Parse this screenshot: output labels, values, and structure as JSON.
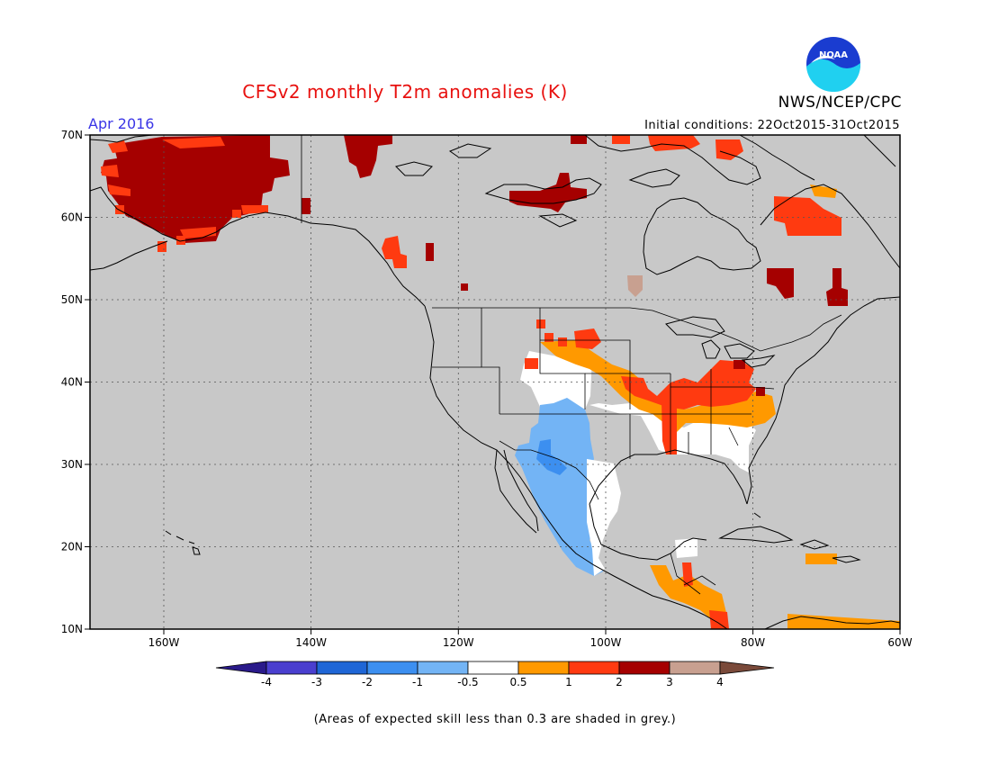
{
  "title": "CFSv2 monthly T2m anomalies (K)",
  "organization": "NWS/NCEP/CPC",
  "logo_text": "NOAA",
  "valid_month": "Apr 2016",
  "initial_conditions": "Initial conditions: 22Oct2015-31Oct2015",
  "caption": "(Areas of expected skill less than 0.3 are shaded in grey.)",
  "map": {
    "lon_range": [
      -170,
      -60
    ],
    "lat_range": [
      10,
      70
    ],
    "lon_ticks": [
      "160W",
      "140W",
      "120W",
      "100W",
      "80W",
      "60W"
    ],
    "lat_ticks": [
      "70N",
      "60N",
      "50N",
      "40N",
      "30N",
      "20N",
      "10N"
    ],
    "background_color": "#c8c8c8",
    "gridlines": "dotted",
    "anomaly_regions": [
      {
        "name": "Alaska",
        "category": "2 to 3",
        "color": "#a50000"
      },
      {
        "name": "Northern Canada",
        "category": "2 to 3",
        "color": "#a50000"
      },
      {
        "name": "Hudson Bay / Labrador",
        "category": "1 to 2",
        "color": "#ff3a10"
      },
      {
        "name": "Ohio Valley / Midwest",
        "category": "1 to 2",
        "color": "#ff3a10"
      },
      {
        "name": "Southern Plains / Southeast",
        "category": "0.5 to 1",
        "color": "#ff9900"
      },
      {
        "name": "Southwest US / Western Mexico",
        "category": "-1 to -0.5",
        "color": "#73b4f5"
      },
      {
        "name": "Gulf coast / Southeast",
        "category": "-0.5 to 0.5",
        "color": "#ffffff"
      },
      {
        "name": "Central America",
        "category": "0.5 to 1",
        "color": "#ff9900"
      }
    ]
  },
  "legend": {
    "labels": [
      "-4",
      "-3",
      "-2",
      "-1",
      "-0.5",
      "0.5",
      "1",
      "2",
      "3",
      "4"
    ],
    "colors": [
      "#2a1a8a",
      "#4a3fcf",
      "#1f66d6",
      "#3c8ff0",
      "#73b4f5",
      "#ffffff",
      "#ff9900",
      "#ff3a10",
      "#a50000",
      "#c8a090",
      "#7a4a3a"
    ]
  }
}
